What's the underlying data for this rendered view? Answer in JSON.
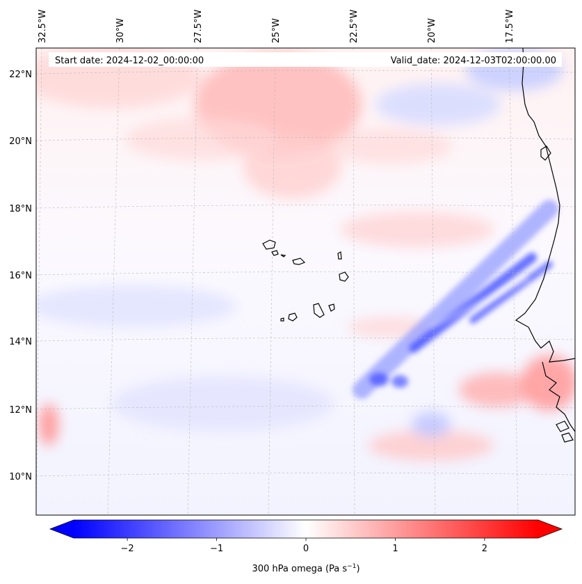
{
  "header": {
    "start_date": "Start date: 2024-12-02_00:00:00",
    "valid_date": "Valid_date: 2024-12-03T02:00:00.00"
  },
  "longitude_labels": [
    "32.5°W",
    "30°W",
    "27.5°W",
    "25°W",
    "22.5°W",
    "20°W",
    "17.5°W"
  ],
  "latitude_labels": [
    "22°N",
    "20°N",
    "18°N",
    "16°N",
    "14°N",
    "12°N",
    "10°N"
  ],
  "colorbar": {
    "ticks": [
      "−2",
      "−1",
      "0",
      "1",
      "2"
    ],
    "tick_values": [
      -2,
      -1,
      0,
      1,
      2
    ],
    "range": [
      -2.6,
      2.6
    ],
    "label_main": "300 hPa omega (Pa s",
    "label_exp": "−1",
    "label_close": ")",
    "colors": {
      "negative": "#0000ff",
      "zero": "#ffffff",
      "positive": "#ff0000"
    },
    "extend": "both"
  },
  "map": {
    "lon_range": [
      -32.5,
      -16.0
    ],
    "lat_range": [
      8.9,
      22.8
    ],
    "gridlines": true,
    "colormap": "bwr"
  }
}
